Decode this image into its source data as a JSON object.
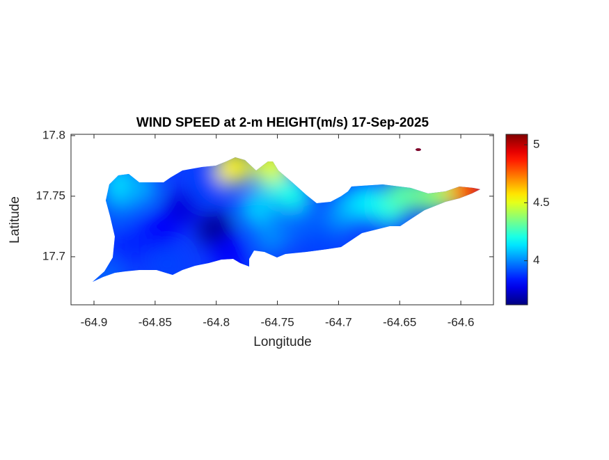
{
  "chart_data": {
    "type": "contour",
    "title": "WIND SPEED at 2-m HEIGHT(m/s) 17-Sep-2025",
    "xlabel": "Longitude",
    "ylabel": "Latitude",
    "xlim": [
      -64.9188,
      -64.5733
    ],
    "ylim": [
      17.6603,
      17.8011
    ],
    "xticks": [
      -64.9,
      -64.85,
      -64.8,
      -64.75,
      -64.7,
      -64.65,
      -64.6
    ],
    "yticks": [
      17.7,
      17.75,
      17.8
    ],
    "colormap": "jet",
    "clim": [
      3.62,
      5.09
    ],
    "cticks": [
      4,
      4.5,
      5
    ],
    "x": [
      -64.8006,
      -64.829,
      -64.846,
      -64.869,
      -64.88,
      -64.877,
      -64.863,
      -64.891,
      -64.84,
      -64.789,
      -64.806,
      -64.786,
      -64.766,
      -64.755,
      -64.755,
      -64.755,
      -64.738,
      -64.727,
      -64.71,
      -64.693,
      -64.676,
      -64.659,
      -64.647,
      -64.624,
      -64.607,
      -64.599,
      -64.59,
      -64.6358,
      -64.716
    ],
    "y": [
      17.7224,
      17.7397,
      17.722,
      17.711,
      17.74,
      17.76,
      17.757,
      17.682,
      17.694,
      17.702,
      17.76,
      17.774,
      17.74,
      17.717,
      17.768,
      17.777,
      17.751,
      17.728,
      17.722,
      17.74,
      17.745,
      17.74,
      17.751,
      17.751,
      17.754,
      17.754,
      17.756,
      17.7885,
      17.708
    ],
    "values": [
      3.65,
      3.75,
      3.8,
      3.85,
      3.95,
      4.15,
      4.05,
      3.95,
      3.9,
      3.8,
      3.9,
      4.55,
      4.1,
      4.0,
      4.25,
      4.5,
      4.2,
      3.95,
      3.95,
      4.05,
      4.15,
      4.2,
      4.3,
      4.35,
      4.4,
      4.6,
      4.85,
      5.05,
      3.9
    ]
  }
}
